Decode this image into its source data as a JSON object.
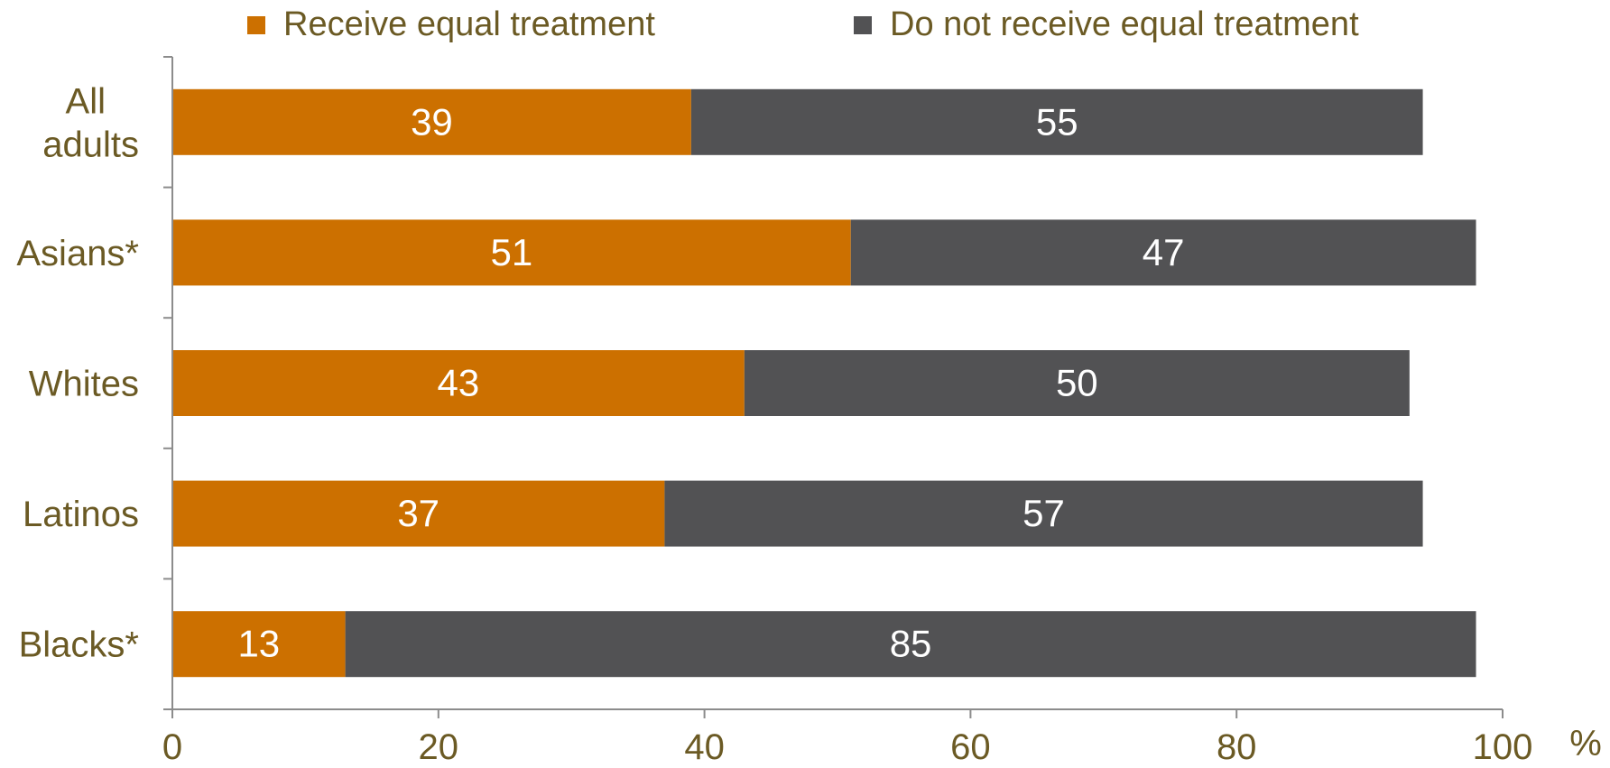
{
  "chart_data": {
    "type": "bar",
    "orientation": "horizontal",
    "stacked": true,
    "categories": [
      "All adults",
      "Asians*",
      "Whites",
      "Latinos",
      "Blacks*"
    ],
    "category_lines": [
      [
        "All",
        "adults"
      ],
      [
        "Asians*"
      ],
      [
        "Whites"
      ],
      [
        "Latinos"
      ],
      [
        "Blacks*"
      ]
    ],
    "series": [
      {
        "name": "Receive equal treatment",
        "values": [
          39,
          51,
          43,
          37,
          13
        ],
        "color": "#cc7000"
      },
      {
        "name": "Do not receive equal treatment",
        "values": [
          55,
          47,
          50,
          57,
          85
        ],
        "color": "#525254"
      }
    ],
    "xlim": [
      0,
      100
    ],
    "xticks": [
      0,
      20,
      40,
      60,
      80,
      100
    ],
    "xunit": "%",
    "legend_position": "top",
    "grid": false,
    "text_color": "#6b5a24",
    "axis_color": "#8c8c8c",
    "label_color": "#ffffff"
  }
}
